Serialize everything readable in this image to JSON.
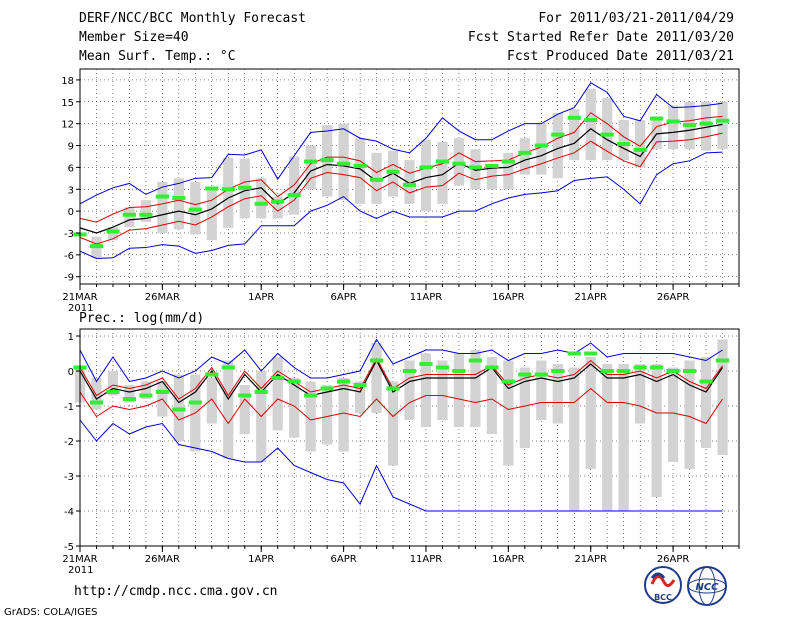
{
  "header": {
    "title": "DERF/NCC/BCC Monthly Forecast",
    "member_size": "Member Size=40",
    "var_temp": "Mean Surf. Temp.: °C",
    "period": "For 2011/03/21-2011/04/29",
    "fcst_started": "Fcst Started Refer Date 2011/03/20",
    "fcst_produced": "Fcst Produced Date 2011/03/21"
  },
  "footer": {
    "url": "http://cmdp.ncc.cma.gov.cn",
    "grads": "GrADS: COLA/IGES",
    "bcc_logo": "BCC",
    "ncc_logo": "NCC"
  },
  "colors": {
    "ensemble_bar": "#d3d3d3",
    "observation": "#33ee33",
    "mean": "#000000",
    "one_std": "#e00000",
    "min_max": "#0000dd",
    "grid": "#000000"
  },
  "chart_data": [
    {
      "type": "line",
      "title": "Mean Surf. Temp.: °C",
      "x_start_label": "21MAR",
      "x_year_label": "2011",
      "x_ticks": [
        {
          "day": 0,
          "label": "21MAR"
        },
        {
          "day": 5,
          "label": "26MAR"
        },
        {
          "day": 11,
          "label": "1APR"
        },
        {
          "day": 16,
          "label": "6APR"
        },
        {
          "day": 21,
          "label": "11APR"
        },
        {
          "day": 26,
          "label": "16APR"
        },
        {
          "day": 31,
          "label": "21APR"
        },
        {
          "day": 36,
          "label": "26APR"
        }
      ],
      "xlim": [
        0,
        40
      ],
      "ylim": [
        -10,
        19.5
      ],
      "y_ticks": [
        -9,
        -6,
        -3,
        0,
        3,
        6,
        9,
        12,
        15,
        18
      ],
      "days": [
        0,
        1,
        2,
        3,
        4,
        5,
        6,
        7,
        8,
        9,
        10,
        11,
        12,
        13,
        14,
        15,
        16,
        17,
        18,
        19,
        20,
        21,
        22,
        23,
        24,
        25,
        26,
        27,
        28,
        29,
        30,
        31,
        32,
        33,
        34,
        35,
        36,
        37,
        38,
        39
      ],
      "mean": [
        -2.3,
        -3.0,
        -2.2,
        -1.2,
        -1.0,
        -0.5,
        0.0,
        -0.5,
        0.3,
        1.8,
        2.8,
        3.2,
        1.0,
        2.5,
        5.5,
        6.4,
        6.2,
        5.8,
        4.1,
        5.2,
        3.8,
        4.6,
        5.0,
        6.6,
        5.6,
        5.9,
        6.0,
        7.0,
        7.6,
        8.6,
        9.3,
        11.3,
        9.8,
        8.6,
        7.5,
        10.6,
        10.8,
        11.1,
        11.5,
        11.9
      ],
      "upper_std": [
        -1.0,
        -1.5,
        -0.4,
        0.5,
        0.6,
        1.0,
        1.5,
        0.9,
        1.5,
        3.0,
        4.0,
        4.3,
        2.0,
        3.6,
        6.5,
        7.4,
        7.4,
        6.9,
        5.3,
        6.4,
        5.2,
        5.9,
        6.5,
        8.0,
        6.8,
        6.9,
        7.0,
        8.0,
        8.8,
        10.0,
        10.8,
        13.5,
        12.0,
        10.2,
        8.9,
        11.6,
        12.2,
        12.4,
        12.8,
        13.0
      ],
      "lower_std": [
        -3.6,
        -4.5,
        -3.8,
        -2.6,
        -2.4,
        -1.9,
        -1.4,
        -1.9,
        -0.8,
        0.6,
        1.7,
        2.1,
        0.0,
        1.5,
        4.5,
        5.3,
        5.0,
        4.6,
        2.8,
        4.0,
        2.5,
        3.3,
        3.5,
        5.2,
        4.3,
        4.8,
        5.0,
        5.8,
        6.5,
        7.3,
        8.0,
        9.6,
        8.2,
        6.9,
        6.1,
        9.5,
        9.6,
        9.8,
        10.2,
        10.7
      ],
      "max": [
        1.0,
        2.2,
        3.2,
        3.8,
        2.3,
        3.3,
        3.8,
        4.5,
        4.6,
        7.8,
        7.7,
        8.4,
        4.4,
        7.6,
        10.8,
        11.0,
        11.3,
        10.0,
        9.6,
        8.5,
        8.0,
        10.0,
        12.8,
        11.0,
        9.8,
        9.8,
        11.0,
        12.0,
        12.0,
        13.3,
        14.2,
        17.6,
        16.3,
        13.0,
        12.4,
        16.0,
        14.2,
        14.3,
        14.5,
        14.8
      ],
      "min": [
        -5.5,
        -6.5,
        -6.4,
        -5.1,
        -5.0,
        -4.6,
        -4.8,
        -5.8,
        -5.4,
        -4.7,
        -4.5,
        -2.0,
        -2.0,
        -2.0,
        0.0,
        0.8,
        2.0,
        0.0,
        -1.0,
        0.0,
        -0.8,
        -0.8,
        -0.8,
        0.0,
        0.0,
        1.0,
        1.8,
        2.3,
        2.5,
        2.8,
        4.2,
        4.5,
        4.7,
        3.0,
        1.0,
        5.0,
        6.5,
        6.9,
        8.0,
        8.1
      ],
      "box_high": [
        -3.0,
        -3.5,
        -2.2,
        0.5,
        1.5,
        4.0,
        4.5,
        4.0,
        3.0,
        7.3,
        7.2,
        4.5,
        2.0,
        7.5,
        9.0,
        11.8,
        12.0,
        10.0,
        8.0,
        8.3,
        7.0,
        9.8,
        9.5,
        10.0,
        8.5,
        6.0,
        8.0,
        10.0,
        12.0,
        13.5,
        14.0,
        16.8,
        15.5,
        12.5,
        12.5,
        13.0,
        14.5,
        15.0,
        15.0,
        15.0
      ],
      "box_low": [
        -3.3,
        -6.4,
        -4.0,
        -2.2,
        -1.5,
        -3.0,
        -2.5,
        -3.2,
        -4.0,
        -2.3,
        -1.0,
        -1.0,
        -1.0,
        -0.5,
        3.0,
        2.0,
        1.5,
        1.0,
        1.0,
        2.0,
        1.0,
        0.0,
        1.0,
        3.5,
        3.0,
        3.0,
        3.0,
        5.0,
        5.0,
        4.5,
        7.0,
        7.0,
        7.0,
        7.0,
        6.0,
        8.5,
        8.5,
        8.5,
        8.3,
        8.5
      ],
      "observation": [
        -3.2,
        -4.8,
        -2.8,
        -0.5,
        -0.5,
        2.0,
        1.8,
        0.2,
        3.1,
        3.0,
        3.2,
        1.0,
        1.3,
        2.2,
        6.8,
        7.0,
        6.5,
        6.2,
        4.3,
        5.4,
        3.6,
        6.0,
        6.8,
        6.5,
        6.0,
        6.2,
        6.8,
        8.0,
        9.0,
        10.5,
        12.8,
        12.5,
        10.5,
        9.2,
        8.4,
        12.7,
        12.3,
        11.8,
        12.0,
        12.4
      ]
    },
    {
      "type": "line",
      "title": "Prec.: log(mm/d)",
      "x_start_label": "21MAR",
      "x_year_label": "2011",
      "x_ticks": [
        {
          "day": 0,
          "label": "21MAR"
        },
        {
          "day": 5,
          "label": "26MAR"
        },
        {
          "day": 11,
          "label": "1APR"
        },
        {
          "day": 16,
          "label": "6APR"
        },
        {
          "day": 21,
          "label": "11APR"
        },
        {
          "day": 26,
          "label": "16APR"
        },
        {
          "day": 31,
          "label": "21APR"
        },
        {
          "day": 36,
          "label": "26APR"
        }
      ],
      "xlim": [
        0,
        40
      ],
      "ylim": [
        -5,
        1.2
      ],
      "y_ticks": [
        -5,
        -4,
        -3,
        -2,
        -1,
        0,
        1
      ],
      "days": [
        0,
        1,
        2,
        3,
        4,
        5,
        6,
        7,
        8,
        9,
        10,
        11,
        12,
        13,
        14,
        15,
        16,
        17,
        18,
        19,
        20,
        21,
        22,
        23,
        24,
        25,
        26,
        27,
        28,
        29,
        30,
        31,
        32,
        33,
        34,
        35,
        36,
        37,
        38,
        39
      ],
      "mean": [
        0.0,
        -0.8,
        -0.5,
        -0.6,
        -0.5,
        -0.3,
        -0.9,
        -0.6,
        0.0,
        -0.8,
        -0.1,
        -0.6,
        -0.1,
        -0.4,
        -0.7,
        -0.6,
        -0.5,
        -0.6,
        0.3,
        -0.6,
        -0.3,
        -0.2,
        -0.2,
        -0.2,
        -0.2,
        0.1,
        -0.5,
        -0.3,
        -0.2,
        -0.3,
        -0.2,
        0.2,
        -0.2,
        -0.2,
        -0.1,
        -0.3,
        -0.1,
        -0.4,
        -0.6,
        0.1
      ],
      "upper_std": [
        0.1,
        -0.7,
        -0.4,
        -0.5,
        -0.4,
        -0.2,
        -0.8,
        -0.5,
        0.1,
        -0.7,
        0.0,
        -0.5,
        0.0,
        -0.3,
        -0.6,
        -0.5,
        -0.4,
        -0.5,
        0.35,
        -0.5,
        -0.2,
        -0.1,
        -0.1,
        -0.1,
        -0.1,
        0.15,
        -0.4,
        -0.2,
        -0.1,
        -0.2,
        -0.1,
        0.3,
        -0.1,
        -0.1,
        0.0,
        -0.2,
        0.0,
        -0.3,
        -0.5,
        0.15
      ],
      "lower_std": [
        -0.6,
        -1.3,
        -1.0,
        -1.1,
        -1.0,
        -0.8,
        -1.4,
        -1.2,
        -0.8,
        -1.5,
        -0.8,
        -1.3,
        -0.8,
        -1.0,
        -1.4,
        -1.3,
        -1.2,
        -1.3,
        -0.8,
        -1.3,
        -0.9,
        -0.7,
        -0.7,
        -0.8,
        -0.9,
        -0.8,
        -1.1,
        -1.0,
        -0.9,
        -0.9,
        -0.9,
        -0.5,
        -0.9,
        -0.9,
        -1.0,
        -1.2,
        -1.2,
        -1.3,
        -1.5,
        -0.8
      ],
      "max": [
        0.6,
        -0.3,
        0.4,
        -0.3,
        -0.2,
        0.0,
        -0.2,
        0.0,
        0.4,
        0.2,
        0.6,
        0.0,
        0.5,
        0.1,
        -0.2,
        -0.2,
        -0.1,
        0.0,
        0.9,
        0.2,
        0.4,
        0.6,
        0.6,
        0.5,
        0.5,
        0.6,
        0.3,
        0.5,
        0.5,
        0.6,
        0.5,
        0.8,
        0.4,
        0.5,
        0.5,
        0.5,
        0.5,
        0.4,
        0.3,
        0.6
      ],
      "min": [
        -1.4,
        -2.0,
        -1.5,
        -1.8,
        -1.6,
        -1.5,
        -2.1,
        -2.2,
        -2.3,
        -2.5,
        -2.6,
        -2.6,
        -2.2,
        -2.7,
        -2.9,
        -3.1,
        -3.2,
        -3.8,
        -2.7,
        -3.6,
        -3.8,
        -4.0,
        -4.0,
        -4.0,
        -4.0,
        -4.0,
        -4.0,
        -4.0,
        -4.0,
        -4.0,
        -4.0,
        -4.0,
        -4.0,
        -4.0,
        -4.0,
        -4.0,
        -4.0,
        -4.0,
        -4.0,
        -4.0
      ],
      "box_high": [
        0.1,
        -0.2,
        0.0,
        -0.4,
        -0.3,
        -0.3,
        -0.1,
        -0.1,
        -0.2,
        0.3,
        -0.4,
        0.0,
        0.4,
        -0.2,
        -0.3,
        -0.4,
        -0.2,
        -0.3,
        0.8,
        -0.3,
        0.3,
        0.5,
        0.3,
        0.5,
        0.6,
        0.4,
        0.3,
        0.1,
        0.3,
        0.2,
        0.1,
        0.4,
        0.2,
        0.2,
        0.2,
        0.2,
        0.1,
        0.3,
        0.4,
        0.9
      ],
      "box_low": [
        -0.9,
        -1.1,
        -0.7,
        -0.9,
        -0.8,
        -1.3,
        -2.0,
        -2.3,
        -1.5,
        -2.5,
        -1.8,
        -2.6,
        -1.7,
        -1.9,
        -2.3,
        -2.1,
        -2.3,
        -1.2,
        -1.2,
        -2.7,
        -1.4,
        -1.6,
        -1.4,
        -1.6,
        -1.6,
        -1.8,
        -2.7,
        -2.2,
        -1.4,
        -1.5,
        -4.0,
        -2.8,
        -4.0,
        -4.0,
        -1.5,
        -3.6,
        -2.6,
        -2.8,
        -2.2,
        -2.4
      ],
      "observation": [
        0.1,
        -0.9,
        -0.6,
        -0.8,
        -0.7,
        -0.6,
        -1.1,
        -0.9,
        -0.1,
        0.1,
        -0.7,
        -0.6,
        -0.2,
        -0.3,
        -0.7,
        -0.5,
        -0.3,
        -0.4,
        0.3,
        -0.5,
        0.0,
        0.2,
        0.1,
        0.0,
        0.3,
        0.1,
        -0.3,
        -0.1,
        -0.1,
        0.0,
        0.5,
        0.5,
        0.0,
        0.0,
        0.1,
        0.1,
        0.0,
        0.0,
        -0.3,
        0.3
      ]
    }
  ]
}
